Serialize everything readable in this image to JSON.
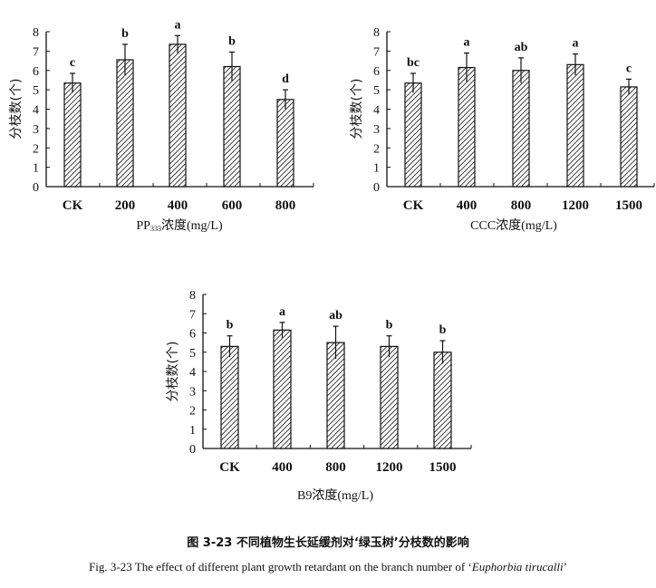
{
  "figure": {
    "caption_cn": "图 3-23  不同植物生长延缓剂对‘绿玉树’分枝数的影响",
    "caption_en_prefix": "Fig. 3-23 The effect of different plant growth retardant on the branch number of ‘",
    "caption_en_species": "Euphorbia tirucalli",
    "caption_en_suffix": "’"
  },
  "chart_data": [
    {
      "type": "bar",
      "title": "",
      "xlabel": "PP333浓度(mg/L)",
      "xlabel_main": "PP",
      "xlabel_sub": "333",
      "xlabel_rest": "浓度(mg/L)",
      "ylabel": "分枝数(个)",
      "ylim": [
        0,
        8
      ],
      "yticks": [
        0,
        1,
        2,
        3,
        4,
        5,
        6,
        7,
        8
      ],
      "categories": [
        "CK",
        "200",
        "400",
        "600",
        "800"
      ],
      "values": [
        5.35,
        6.55,
        7.35,
        6.2,
        4.5
      ],
      "errors": [
        0.5,
        0.8,
        0.45,
        0.75,
        0.5
      ],
      "significance": [
        "c",
        "b",
        "a",
        "b",
        "d"
      ],
      "grid": false,
      "legend": null
    },
    {
      "type": "bar",
      "title": "",
      "xlabel": "CCC浓度(mg/L)",
      "ylabel": "分枝数(个)",
      "ylim": [
        0,
        8
      ],
      "yticks": [
        0,
        1,
        2,
        3,
        4,
        5,
        6,
        7,
        8
      ],
      "categories": [
        "CK",
        "400",
        "800",
        "1200",
        "1500"
      ],
      "values": [
        5.35,
        6.15,
        6.0,
        6.3,
        5.15
      ],
      "errors": [
        0.5,
        0.75,
        0.65,
        0.55,
        0.4
      ],
      "significance": [
        "bc",
        "a",
        "ab",
        "a",
        "c"
      ],
      "grid": false,
      "legend": null
    },
    {
      "type": "bar",
      "title": "",
      "xlabel": "B9浓度(mg/L)",
      "ylabel": "分枝数(个)",
      "ylim": [
        0,
        8
      ],
      "yticks": [
        0,
        1,
        2,
        3,
        4,
        5,
        6,
        7,
        8
      ],
      "categories": [
        "CK",
        "400",
        "800",
        "1200",
        "1500"
      ],
      "values": [
        5.3,
        6.15,
        5.5,
        5.3,
        5.0
      ],
      "errors": [
        0.55,
        0.4,
        0.85,
        0.55,
        0.6
      ],
      "significance": [
        "b",
        "a",
        "ab",
        "b",
        "b"
      ],
      "grid": false,
      "legend": null
    }
  ]
}
